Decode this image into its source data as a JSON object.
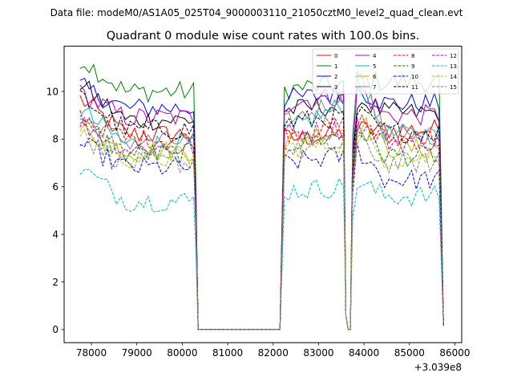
{
  "chart_data": {
    "type": "line",
    "suptitle": "Data file: modeM0/AS1A05_025T04_9000003110_21050cztM0_level2_quad_clean.evt",
    "title": "Quadrant 0 module wise count rates with 100.0s bins.",
    "xlabel": "",
    "ylabel": "",
    "x_offset_label": "+3.039e8",
    "x_offset": 303900000,
    "xlim": [
      77400,
      86150
    ],
    "ylim": [
      -0.55,
      11.9
    ],
    "xticks": [
      78000,
      79000,
      80000,
      81000,
      82000,
      83000,
      84000,
      85000,
      86000
    ],
    "xtick_labels": [
      "78000",
      "79000",
      "80000",
      "81000",
      "82000",
      "83000",
      "84000",
      "85000",
      "86000"
    ],
    "yticks": [
      0,
      2,
      4,
      6,
      8,
      10
    ],
    "ytick_labels": [
      "0",
      "2",
      "4",
      "6",
      "8",
      "10"
    ],
    "legend_position": "upper-right",
    "bin_size_s": 100,
    "segments": [
      {
        "x_start": 77750,
        "x_end": 80350
      },
      {
        "x_start": 80350,
        "x_end": 82150
      },
      {
        "x_start": 82150,
        "x_end": 83550
      },
      {
        "x_start": 83550,
        "x_end": 83700
      },
      {
        "x_start": 83700,
        "x_end": 83850
      },
      {
        "x_start": 83850,
        "x_end": 85750
      }
    ],
    "series": [
      {
        "name": "0",
        "color": "#ff0000",
        "dashed": false,
        "levels": [
          9.7,
          8.2,
          8.0,
          8.4,
          8.4
        ]
      },
      {
        "name": "1",
        "color": "#008000",
        "dashed": false,
        "levels": [
          11.4,
          10.0,
          10.1,
          10.5,
          10.4
        ]
      },
      {
        "name": "2",
        "color": "#0000ff",
        "dashed": false,
        "levels": [
          10.2,
          9.3,
          9.7,
          10.1,
          9.5
        ]
      },
      {
        "name": "3",
        "color": "#000000",
        "dashed": false,
        "levels": [
          10.3,
          8.8,
          9.2,
          9.7,
          9.1
        ]
      },
      {
        "name": "4",
        "color": "#bf00bf",
        "dashed": false,
        "levels": [
          9.9,
          8.9,
          9.5,
          10.2,
          9.0
        ]
      },
      {
        "name": "5",
        "color": "#00bfbf",
        "dashed": false,
        "levels": [
          9.2,
          7.8,
          8.3,
          10.6,
          8.2
        ]
      },
      {
        "name": "6",
        "color": "#bfbf00",
        "dashed": false,
        "levels": [
          8.4,
          7.5,
          7.9,
          9.0,
          7.6
        ]
      },
      {
        "name": "7",
        "color": "#808080",
        "dashed": false,
        "levels": [
          8.9,
          7.9,
          8.6,
          11.0,
          8.1
        ]
      },
      {
        "name": "8",
        "color": "#ff0000",
        "dashed": true,
        "levels": [
          9.0,
          8.0,
          8.3,
          8.9,
          8.0
        ]
      },
      {
        "name": "9",
        "color": "#008000",
        "dashed": true,
        "levels": [
          8.6,
          7.4,
          7.8,
          8.5,
          7.3
        ]
      },
      {
        "name": "10",
        "color": "#0000ff",
        "dashed": true,
        "levels": [
          7.8,
          6.8,
          7.0,
          7.6,
          6.3
        ]
      },
      {
        "name": "11",
        "color": "#000000",
        "dashed": true,
        "levels": [
          9.8,
          8.4,
          8.7,
          9.1,
          8.3
        ]
      },
      {
        "name": "12",
        "color": "#bf00bf",
        "dashed": true,
        "levels": [
          8.7,
          7.6,
          8.2,
          8.7,
          7.9
        ]
      },
      {
        "name": "13",
        "color": "#00bfbf",
        "dashed": true,
        "levels": [
          6.8,
          5.4,
          5.8,
          6.2,
          5.6
        ]
      },
      {
        "name": "14",
        "color": "#bfbf00",
        "dashed": true,
        "levels": [
          8.3,
          7.2,
          7.6,
          8.1,
          7.2
        ]
      },
      {
        "name": "15",
        "color": "#808080",
        "dashed": true,
        "levels": [
          8.1,
          7.0,
          7.5,
          8.0,
          7.0
        ]
      }
    ]
  }
}
